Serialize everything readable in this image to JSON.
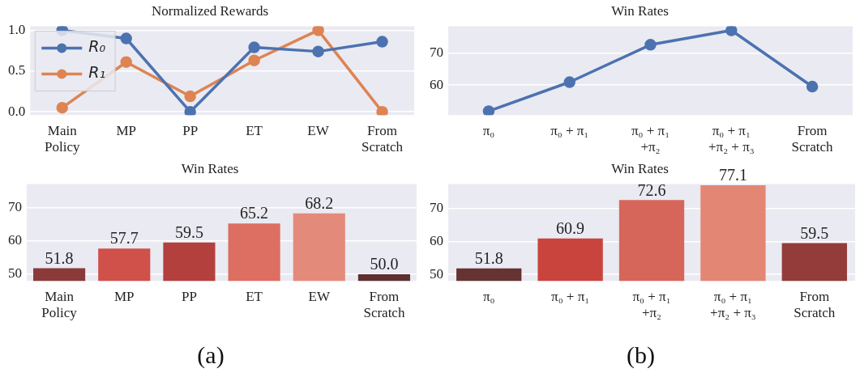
{
  "chart_data": [
    {
      "type": "line",
      "title": "Normalized Rewards",
      "categories": [
        "Main\nPolicy",
        "MP",
        "PP",
        "ET",
        "EW",
        "From\nScratch"
      ],
      "series": [
        {
          "name": "R₀",
          "color": "#4c72b0",
          "values": [
            1.0,
            0.9,
            0.0,
            0.79,
            0.74,
            0.86
          ]
        },
        {
          "name": "R₁",
          "color": "#dd8452",
          "values": [
            0.05,
            0.61,
            0.19,
            0.63,
            1.0,
            0.0
          ]
        }
      ],
      "ylim": [
        -0.04,
        1.05
      ],
      "yticks": [
        {
          "value": 0,
          "label": "0.0"
        },
        {
          "value": 0.5,
          "label": "0.5"
        },
        {
          "value": 1,
          "label": "1.0"
        }
      ],
      "grid": "y",
      "legend": "top left",
      "marker": "circle"
    },
    {
      "type": "bar",
      "title": "Win Rates",
      "categories": [
        "Main\nPolicy",
        "MP",
        "PP",
        "ET",
        "EW",
        "From\nScratch"
      ],
      "values": [
        51.8,
        57.7,
        59.5,
        65.2,
        68.2,
        50.0
      ],
      "value_labels": [
        "51.8",
        "57.7",
        "59.5",
        "65.2",
        "68.2",
        "50.0"
      ],
      "colors": [
        "#8b3a3a",
        "#d0504a",
        "#b3403c",
        "#dd6e62",
        "#e48a7a",
        "#5e3030"
      ],
      "ylim": [
        48,
        77
      ],
      "yticks": [
        50,
        60,
        70
      ],
      "grid": "y",
      "data_labels": true,
      "annotations": [
        "(a)"
      ]
    },
    {
      "type": "line",
      "title": "Win Rates",
      "categories": [
        "π₀",
        "π₀ + π₁",
        "π₀ + π₁\n+π₂",
        "π₀ + π₁\n+π₂ + π₃",
        "From\nScratch"
      ],
      "series": [
        {
          "color": "#4c72b0",
          "values": [
            51.8,
            60.9,
            72.6,
            77.1,
            59.5
          ]
        }
      ],
      "ylim": [
        50.6,
        78.4
      ],
      "yticks": [
        60,
        70
      ],
      "grid": "y",
      "marker": "circle"
    },
    {
      "type": "bar",
      "title": "Win Rates",
      "categories": [
        "π₀",
        "π₀ + π₁",
        "π₀ + π₁\n+π₂",
        "π₀ + π₁\n+π₂ + π₃",
        "From\nScratch"
      ],
      "values": [
        51.8,
        60.9,
        72.6,
        77.1,
        59.5
      ],
      "colors": [
        "#663333",
        "#c9443d",
        "#d6665a",
        "#e38673",
        "#943c39"
      ],
      "ylim": [
        48,
        77.5
      ],
      "yticks": [
        50,
        60,
        70
      ],
      "grid": "y",
      "data_labels": true,
      "annotations": [
        "(b)"
      ]
    }
  ]
}
